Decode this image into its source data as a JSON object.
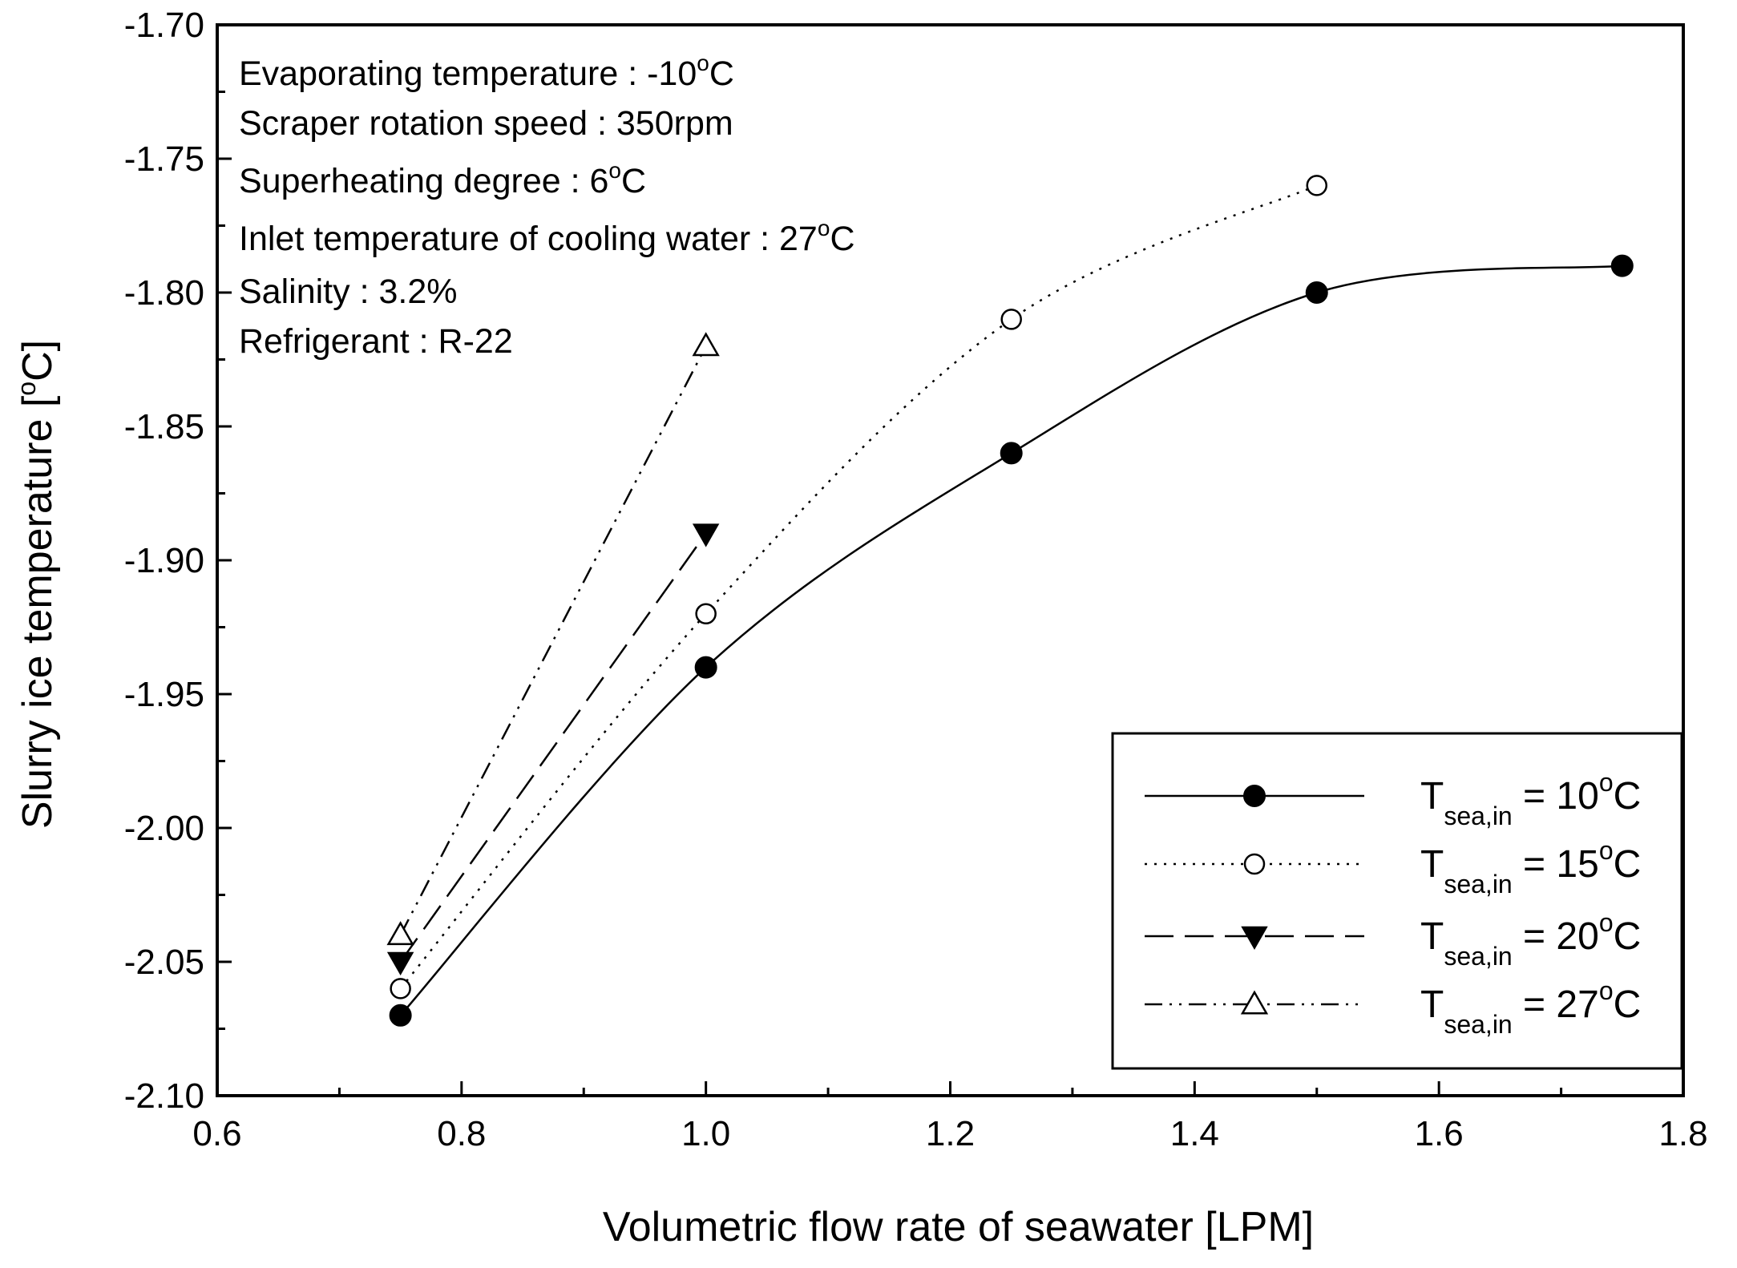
{
  "chart_data": {
    "type": "line",
    "xlabel": "Volumetric flow rate of seawater [LPM]",
    "ylabel": {
      "prefix": "Slurry ice temperature [",
      "degree": "o",
      "suffix": "C]"
    },
    "xlim": [
      0.6,
      1.8
    ],
    "ylim": [
      -2.1,
      -1.7
    ],
    "x_ticks": [
      "0.6",
      "0.8",
      "1.0",
      "1.2",
      "1.4",
      "1.6",
      "1.8"
    ],
    "y_ticks": [
      "-1.70",
      "-1.75",
      "-1.80",
      "-1.85",
      "-1.90",
      "-1.95",
      "-2.00",
      "-2.05",
      "-2.10"
    ],
    "grid": false,
    "legend_position": "bottom-right",
    "annotations": [
      {
        "parts": [
          "Evaporating temperature : -10",
          "o",
          "C"
        ]
      },
      {
        "parts": [
          "Scraper rotation speed : 350rpm"
        ]
      },
      {
        "parts": [
          "Superheating degree : 6",
          "o",
          "C"
        ]
      },
      {
        "parts": [
          "Inlet temperature of cooling water : 27",
          "o",
          "C"
        ]
      },
      {
        "parts": [
          "Salinity : 3.2%"
        ]
      },
      {
        "parts": [
          "Refrigerant : R-22"
        ]
      }
    ],
    "series": [
      {
        "label_main": "T",
        "label_sub": "sea,in",
        "label_value": " = 10",
        "label_degree": "o",
        "label_unit": "C",
        "marker": "filled-circle",
        "line": "solid",
        "x": [
          0.75,
          1.0,
          1.25,
          1.5,
          1.75
        ],
        "y": [
          -2.07,
          -1.94,
          -1.86,
          -1.8,
          -1.79
        ]
      },
      {
        "label_main": "T",
        "label_sub": "sea,in",
        "label_value": " = 15",
        "label_degree": "o",
        "label_unit": "C",
        "marker": "open-circle",
        "line": "dotted",
        "x": [
          0.75,
          1.0,
          1.25,
          1.5
        ],
        "y": [
          -2.06,
          -1.92,
          -1.81,
          -1.76
        ]
      },
      {
        "label_main": "T",
        "label_sub": "sea,in",
        "label_value": " = 20",
        "label_degree": "o",
        "label_unit": "C",
        "marker": "filled-triangle-down",
        "line": "dashed",
        "x": [
          0.75,
          1.0
        ],
        "y": [
          -2.05,
          -1.89
        ]
      },
      {
        "label_main": "T",
        "label_sub": "sea,in",
        "label_value": " = 27",
        "label_degree": "o",
        "label_unit": "C",
        "marker": "open-triangle-up",
        "line": "dash-dot-dot",
        "x": [
          0.75,
          1.0
        ],
        "y": [
          -2.04,
          -1.82
        ]
      }
    ]
  }
}
